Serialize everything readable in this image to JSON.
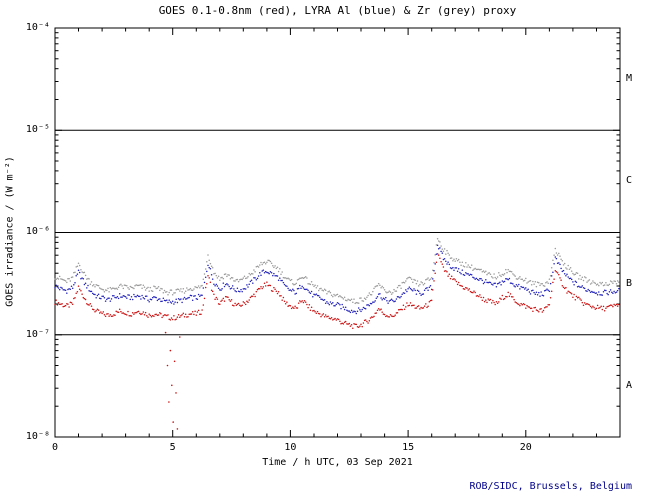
{
  "chart_data": {
    "type": "scatter",
    "title": "GOES 0.1-0.8nm (red), LYRA Al (blue) & Zr (grey) proxy",
    "xlabel": "Time / h UTC, 03 Sep 2021",
    "ylabel": "GOES irradiance / (W m⁻²)",
    "credit": "ROB/SIDC, Brussels, Belgium",
    "credit_color": "#00008b",
    "x_unit": "hours UTC",
    "x_range": [
      0,
      24
    ],
    "y_range": [
      1e-08,
      0.0001
    ],
    "y_scale": "log",
    "grid": "off",
    "legend": "in-title",
    "x_tick_labels": [
      "0",
      "5",
      "10",
      "15",
      "20"
    ],
    "x_major_tick_step": 5,
    "x_minor_tick_step": 1,
    "y_tick_labels": [
      "10⁻⁴",
      "10⁻⁵",
      "10⁻⁶",
      "10⁻⁷",
      "10⁻⁸"
    ],
    "flare_class_labels": [
      "M",
      "C",
      "B",
      "A"
    ],
    "class_boundaries": [
      1e-05,
      1e-06,
      1e-07
    ],
    "value_scale": 1e-07,
    "x_step_hours": 0.25,
    "series": [
      {
        "name": "GOES 0.1-0.8nm",
        "color": "#cc1111",
        "values": [
          2.1,
          2.0,
          1.9,
          2.0,
          2.9,
          2.3,
          1.9,
          1.7,
          1.6,
          1.55,
          1.6,
          1.7,
          1.65,
          1.6,
          1.7,
          1.65,
          1.55,
          1.6,
          1.55,
          1.5,
          1.45,
          1.5,
          1.55,
          1.6,
          1.6,
          1.7,
          3.8,
          2.4,
          2.0,
          2.3,
          2.1,
          1.9,
          2.0,
          2.2,
          2.5,
          2.9,
          3.1,
          2.8,
          2.6,
          2.1,
          1.9,
          1.8,
          2.2,
          1.9,
          1.7,
          1.6,
          1.5,
          1.45,
          1.4,
          1.3,
          1.25,
          1.2,
          1.25,
          1.35,
          1.5,
          1.8,
          1.6,
          1.5,
          1.6,
          1.8,
          2.0,
          1.9,
          1.8,
          1.9,
          2.1,
          6.3,
          4.4,
          3.7,
          3.3,
          3.0,
          2.8,
          2.6,
          2.4,
          2.2,
          2.1,
          2.0,
          2.3,
          2.5,
          2.2,
          2.0,
          1.9,
          1.8,
          1.75,
          1.7,
          2.0,
          4.3,
          3.3,
          2.7,
          2.4,
          2.2,
          2.0,
          1.9,
          1.85,
          1.8,
          1.85,
          1.9,
          2.0
        ]
      },
      {
        "name": "LYRA Al proxy",
        "color": "#2222bb",
        "values": [
          3.0,
          2.8,
          2.7,
          2.9,
          4.1,
          3.2,
          2.7,
          2.4,
          2.3,
          2.2,
          2.3,
          2.4,
          2.35,
          2.3,
          2.4,
          2.35,
          2.2,
          2.3,
          2.2,
          2.1,
          2.1,
          2.15,
          2.2,
          2.3,
          2.3,
          2.4,
          5.0,
          3.3,
          2.8,
          3.2,
          2.9,
          2.7,
          2.8,
          3.1,
          3.5,
          4.0,
          4.2,
          3.9,
          3.6,
          3.0,
          2.7,
          2.6,
          3.1,
          2.7,
          2.4,
          2.3,
          2.1,
          2.0,
          1.95,
          1.85,
          1.75,
          1.7,
          1.75,
          1.9,
          2.1,
          2.5,
          2.2,
          2.1,
          2.2,
          2.5,
          2.8,
          2.7,
          2.5,
          2.7,
          2.9,
          7.6,
          5.6,
          4.8,
          4.4,
          4.1,
          3.9,
          3.7,
          3.5,
          3.3,
          3.1,
          3.0,
          3.3,
          3.5,
          3.1,
          2.9,
          2.8,
          2.6,
          2.5,
          2.5,
          2.8,
          5.6,
          4.4,
          3.7,
          3.3,
          3.0,
          2.8,
          2.7,
          2.6,
          2.55,
          2.6,
          2.65,
          2.7
        ]
      },
      {
        "name": "LYRA Zr proxy",
        "color": "#9a9a9a",
        "values": [
          3.7,
          3.5,
          3.3,
          3.6,
          5.0,
          3.9,
          3.3,
          3.0,
          2.8,
          2.7,
          2.8,
          3.0,
          2.9,
          2.85,
          3.0,
          2.9,
          2.75,
          2.85,
          2.75,
          2.6,
          2.6,
          2.65,
          2.7,
          2.85,
          2.85,
          3.0,
          6.1,
          4.1,
          3.5,
          3.9,
          3.6,
          3.3,
          3.5,
          3.8,
          4.3,
          4.9,
          5.2,
          4.8,
          4.4,
          3.7,
          3.3,
          3.2,
          3.8,
          3.3,
          3.0,
          2.8,
          2.6,
          2.5,
          2.4,
          2.3,
          2.2,
          2.1,
          2.2,
          2.35,
          2.6,
          3.1,
          2.7,
          2.6,
          2.7,
          3.1,
          3.5,
          3.3,
          3.1,
          3.3,
          3.6,
          8.8,
          6.9,
          5.9,
          5.4,
          5.0,
          4.8,
          4.5,
          4.3,
          4.0,
          3.8,
          3.7,
          4.0,
          4.3,
          3.8,
          3.6,
          3.4,
          3.2,
          3.1,
          3.1,
          3.4,
          6.9,
          5.4,
          4.6,
          4.1,
          3.7,
          3.5,
          3.3,
          3.2,
          3.1,
          3.2,
          3.25,
          3.3
        ]
      }
    ],
    "goes_dropout_points": [
      [
        4.7,
        1.05
      ],
      [
        4.78,
        0.5
      ],
      [
        4.84,
        0.22
      ],
      [
        4.9,
        0.7
      ],
      [
        4.96,
        0.32
      ],
      [
        5.02,
        0.14
      ],
      [
        5.08,
        0.55
      ],
      [
        5.14,
        0.27
      ],
      [
        5.2,
        0.12
      ],
      [
        5.3,
        0.95
      ]
    ]
  }
}
